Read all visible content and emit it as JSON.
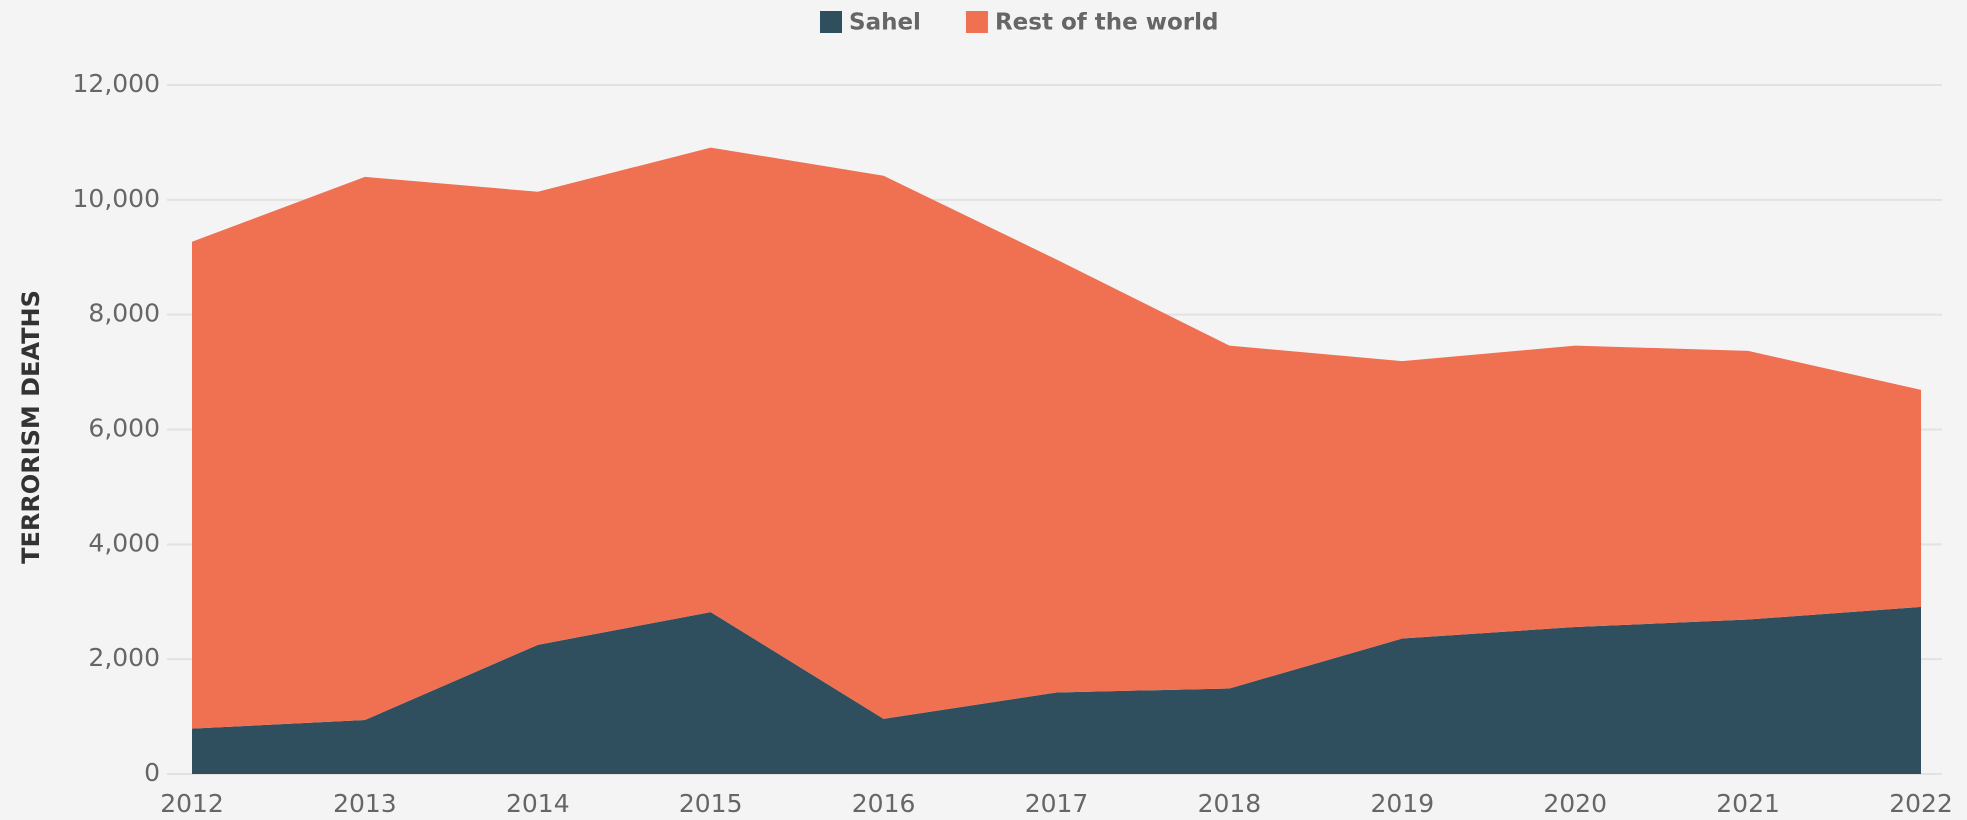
{
  "chart_data": {
    "type": "stacked-area",
    "y_label": "TERRORISM DEATHS",
    "categories": [
      "2012",
      "2013",
      "2014",
      "2015",
      "2016",
      "2017",
      "2018",
      "2019",
      "2020",
      "2021",
      "2022"
    ],
    "series": [
      {
        "name": "Sahel",
        "color": "#2f4f5f",
        "values": [
          790,
          940,
          2250,
          2820,
          960,
          1420,
          1490,
          2360,
          2560,
          2690,
          2910
        ]
      },
      {
        "name": "Rest of the world",
        "color": "#f07052",
        "values": [
          8480,
          9460,
          7890,
          8090,
          9460,
          7540,
          5970,
          4830,
          4900,
          4680,
          3780
        ]
      }
    ],
    "ylim": [
      0,
      12000
    ],
    "yticks": [
      0,
      {
        "value": 2000,
        "label": "2,000"
      },
      {
        "value": 4000,
        "label": "4,000"
      },
      {
        "value": 6000,
        "label": "6,000"
      },
      {
        "value": 8000,
        "label": "8,000"
      },
      {
        "value": 10000,
        "label": "10,000"
      },
      {
        "value": 12000,
        "label": "12,000"
      }
    ],
    "grid": true,
    "legend": "top"
  }
}
